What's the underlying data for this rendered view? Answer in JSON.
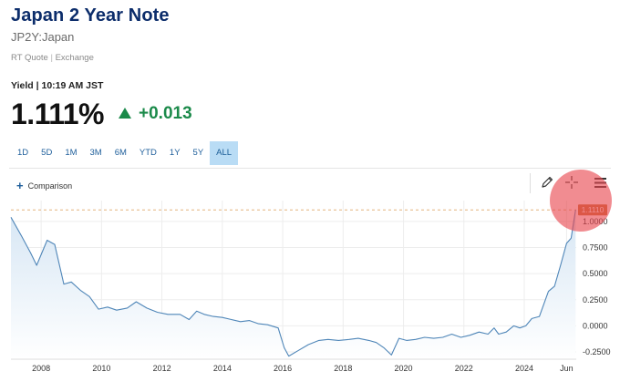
{
  "header": {
    "title": "Japan 2 Year Note",
    "symbol": "JP2Y:Japan",
    "quote_type": "RT Quote",
    "quote_sep": "|",
    "quote_exchange": "Exchange"
  },
  "quote": {
    "yield_label": "Yield | 10:19 AM JST",
    "last": "1.111%",
    "change": "+0.013",
    "direction": "up",
    "up_color": "#1b8a4a"
  },
  "range_tabs": [
    {
      "label": "1D"
    },
    {
      "label": "5D"
    },
    {
      "label": "1M"
    },
    {
      "label": "3M"
    },
    {
      "label": "6M"
    },
    {
      "label": "YTD"
    },
    {
      "label": "1Y"
    },
    {
      "label": "5Y"
    },
    {
      "label": "ALL",
      "active": true
    }
  ],
  "toolbar": {
    "comparison_label": "Comparison",
    "icons": [
      "pencil-icon",
      "crosshair-icon",
      "menu-icon"
    ]
  },
  "chart_data": {
    "type": "area",
    "x_labels": [
      "2008",
      "2010",
      "2012",
      "2014",
      "2016",
      "2018",
      "2020",
      "2022",
      "2024",
      "Jun"
    ],
    "y_labels": [
      "1.0000",
      "0.7500",
      "0.5000",
      "0.2500",
      "0.0000",
      "-0.2500"
    ],
    "ylim": [
      -0.32,
      1.2
    ],
    "last_value_label": "1.1110",
    "last_value": 1.111,
    "line_color": "#4f86b8",
    "fill_color": "#d6e6f4",
    "flag_color": "#c7743a",
    "series": [
      {
        "x": [
          2007.0,
          2007.35,
          2007.65,
          2007.85,
          2008.2,
          2008.45,
          2008.75,
          2009.0,
          2009.3,
          2009.6,
          2009.9,
          2010.2,
          2010.5,
          2010.85,
          2011.15,
          2011.5,
          2011.85,
          2012.2,
          2012.6,
          2012.9,
          2013.15,
          2013.4,
          2013.7,
          2014.0,
          2014.3,
          2014.6,
          2014.9,
          2015.2,
          2015.5,
          2015.85,
          2016.05,
          2016.2,
          2016.5,
          2016.85,
          2017.2,
          2017.5,
          2017.85,
          2018.2,
          2018.5,
          2018.85,
          2019.1,
          2019.35,
          2019.6,
          2019.85,
          2020.1,
          2020.4,
          2020.7,
          2021.0,
          2021.3,
          2021.6,
          2021.9,
          2022.2,
          2022.5,
          2022.8,
          2023.0,
          2023.15,
          2023.4,
          2023.65,
          2023.85,
          2024.05,
          2024.25,
          2024.5,
          2024.8,
          2025.0,
          2025.2,
          2025.4,
          2025.55,
          2025.7
        ],
        "y": [
          1.04,
          0.86,
          0.7,
          0.58,
          0.82,
          0.78,
          0.4,
          0.42,
          0.34,
          0.28,
          0.16,
          0.18,
          0.15,
          0.17,
          0.23,
          0.17,
          0.13,
          0.11,
          0.11,
          0.06,
          0.14,
          0.11,
          0.09,
          0.08,
          0.06,
          0.04,
          0.05,
          0.02,
          0.01,
          -0.02,
          -0.21,
          -0.29,
          -0.24,
          -0.18,
          -0.14,
          -0.13,
          -0.14,
          -0.13,
          -0.12,
          -0.14,
          -0.16,
          -0.21,
          -0.28,
          -0.12,
          -0.14,
          -0.13,
          -0.11,
          -0.12,
          -0.11,
          -0.08,
          -0.11,
          -0.09,
          -0.06,
          -0.08,
          -0.02,
          -0.08,
          -0.06,
          0.0,
          -0.02,
          0.0,
          0.07,
          0.09,
          0.33,
          0.38,
          0.58,
          0.79,
          0.84,
          1.111
        ]
      }
    ],
    "grid": true,
    "y_axis_side": "right"
  }
}
